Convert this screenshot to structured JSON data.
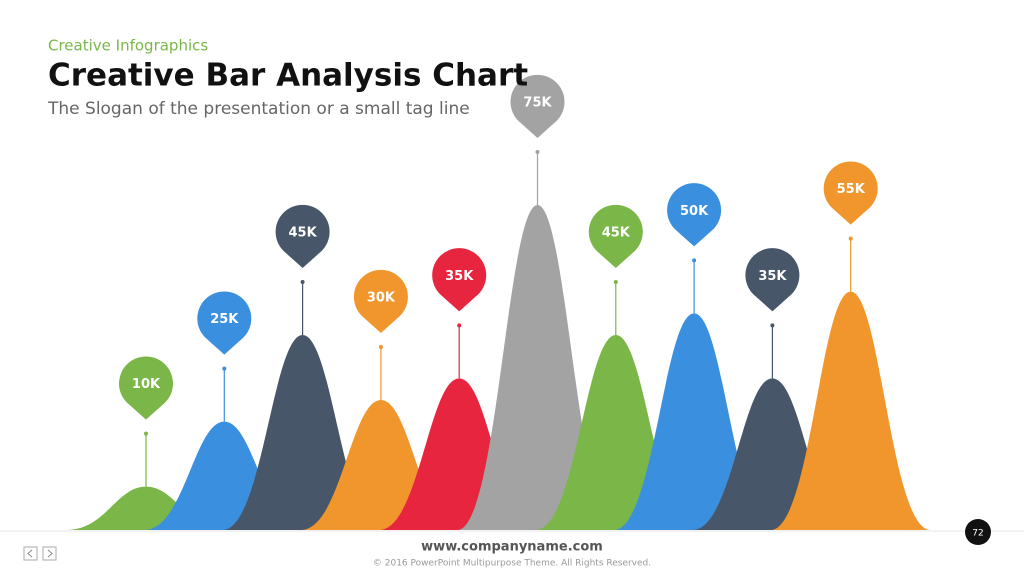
{
  "header": {
    "kicker": "Creative Infographics",
    "title": "Creative Bar Analysis Chart",
    "slogan": "The Slogan of the presentation or a small tag line"
  },
  "chart_data": {
    "type": "bell",
    "values": [
      10000,
      25000,
      45000,
      30000,
      35000,
      75000,
      45000,
      50000,
      35000,
      55000
    ],
    "value_labels": [
      "10K",
      "25K",
      "45K",
      "30K",
      "35K",
      "75K",
      "45K",
      "50K",
      "35K",
      "55K"
    ],
    "colors": [
      "#7ab648",
      "#3a8fde",
      "#475669",
      "#f0962d",
      "#e8253f",
      "#a3a3a3",
      "#7ab648",
      "#3a8fde",
      "#475669",
      "#f0962d"
    ]
  },
  "footer": {
    "website": "www.companyname.com",
    "copyright": "© 2016 PowerPoint Multipurpose Theme. All Rights Reserved.",
    "page": "72"
  }
}
